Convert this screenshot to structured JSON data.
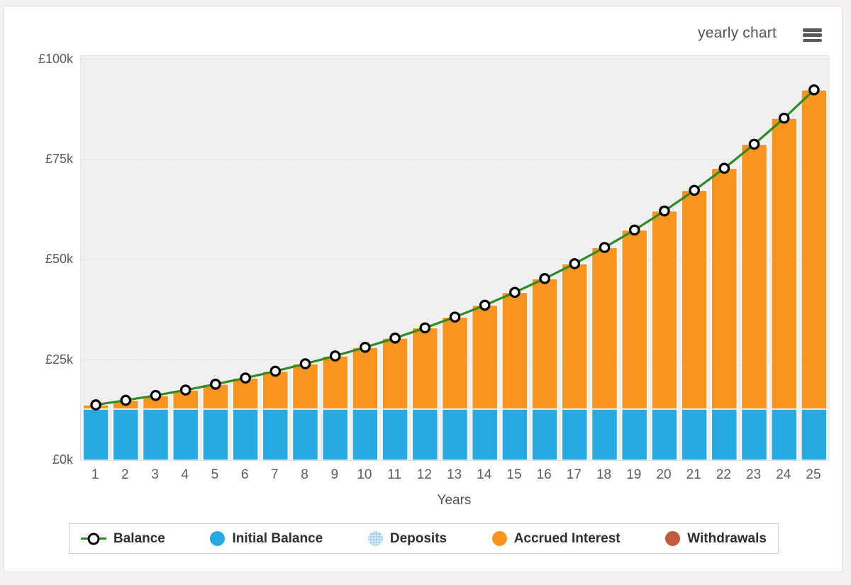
{
  "header": {
    "title": "yearly chart"
  },
  "chart_data": {
    "type": "bar",
    "subtype": "stacked-columns-with-line",
    "title": "yearly chart",
    "xlabel": "Years",
    "ylabel": "",
    "currency": "£",
    "ylim": [
      0,
      100000
    ],
    "y_tick_values": [
      0,
      25000,
      50000,
      75000,
      100000
    ],
    "y_tick_labels": [
      "£0k",
      "£25k",
      "£50k",
      "£75k",
      "£100k"
    ],
    "categories": [
      1,
      2,
      3,
      4,
      5,
      6,
      7,
      8,
      9,
      10,
      11,
      12,
      13,
      14,
      15,
      16,
      17,
      18,
      19,
      20,
      21,
      22,
      23,
      24,
      25
    ],
    "legend_position": "bottom",
    "grid": true,
    "plot_background": "#f0f0f1",
    "series": [
      {
        "name": "Balance",
        "type": "line",
        "color": "#2E8B25",
        "marker": "white-circle-black-ring",
        "values": [
          13800,
          14950,
          16150,
          17500,
          18950,
          20500,
          22200,
          24050,
          26000,
          28150,
          30450,
          33000,
          35700,
          38650,
          41850,
          45300,
          49000,
          53050,
          57400,
          62150,
          67300,
          72800,
          78800,
          85300,
          92350
        ]
      },
      {
        "name": "Initial Balance",
        "type": "column",
        "color": "#27A9E2",
        "values": [
          12750,
          12750,
          12750,
          12750,
          12750,
          12750,
          12750,
          12750,
          12750,
          12750,
          12750,
          12750,
          12750,
          12750,
          12750,
          12750,
          12750,
          12750,
          12750,
          12750,
          12750,
          12750,
          12750,
          12750,
          12750
        ]
      },
      {
        "name": "Deposits",
        "type": "column",
        "color": "#ABD7F2",
        "pattern": "dotted",
        "values": [
          0,
          0,
          0,
          0,
          0,
          0,
          0,
          0,
          0,
          0,
          0,
          0,
          0,
          0,
          0,
          0,
          0,
          0,
          0,
          0,
          0,
          0,
          0,
          0,
          0
        ]
      },
      {
        "name": "Accrued Interest",
        "type": "column",
        "color": "#F9941E",
        "values": [
          1050,
          2200,
          3400,
          4750,
          6200,
          7750,
          9450,
          11300,
          13250,
          15400,
          17700,
          20250,
          22950,
          25900,
          29100,
          32550,
          36250,
          40300,
          44650,
          49400,
          54550,
          60050,
          66050,
          72550,
          79600
        ]
      },
      {
        "name": "Withdrawals",
        "type": "column",
        "color": "#C15B3B",
        "values": [
          0,
          0,
          0,
          0,
          0,
          0,
          0,
          0,
          0,
          0,
          0,
          0,
          0,
          0,
          0,
          0,
          0,
          0,
          0,
          0,
          0,
          0,
          0,
          0,
          0
        ]
      }
    ]
  },
  "legend": {
    "items": [
      {
        "label": "Balance",
        "marker": "line-circle",
        "color": "#2E8B25"
      },
      {
        "label": "Initial Balance",
        "marker": "dot",
        "color": "#27A9E2"
      },
      {
        "label": "Deposits",
        "marker": "dot-pattern",
        "color": "#ABD7F2"
      },
      {
        "label": "Accrued Interest",
        "marker": "dot",
        "color": "#F9941E"
      },
      {
        "label": "Withdrawals",
        "marker": "dot",
        "color": "#C15B3B"
      }
    ]
  },
  "icons": {
    "menu": "hamburger-icon",
    "line_marker": "circle-marker-icon"
  },
  "colors": {
    "page_background": "#f4f2f3",
    "panel_background": "#ffffff",
    "panel_border": "#dcdcdc",
    "plot_background": "#f0f0f1",
    "gridline": "#e2e2e5",
    "axis_text": "#5d5d5d",
    "title_text": "#555555",
    "legend_text": "#2f2f2f",
    "bar_border": "#ffffff"
  }
}
